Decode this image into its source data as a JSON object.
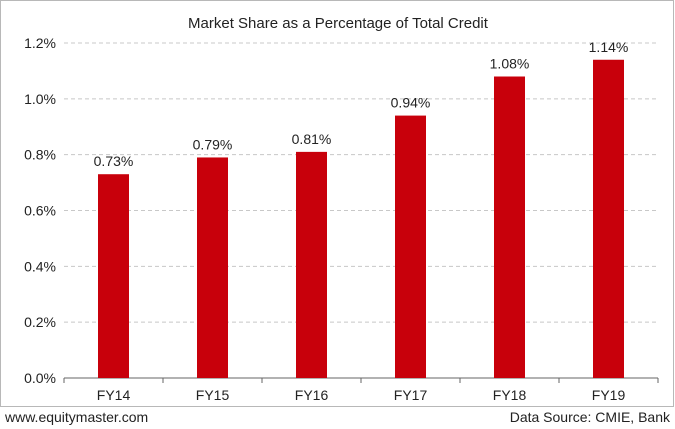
{
  "footer": {
    "left": "www.equitymaster.com",
    "right": "Data Source: CMIE, Bank"
  },
  "colors": {
    "bar": "#c8000b",
    "grid": "#c8c8c8",
    "axis": "#666666"
  },
  "chart_data": {
    "type": "bar",
    "title": "Market Share as a Percentage of Total Credit",
    "xlabel": "",
    "ylabel": "",
    "categories": [
      "FY14",
      "FY15",
      "FY16",
      "FY17",
      "FY18",
      "FY19"
    ],
    "values": [
      0.73,
      0.79,
      0.81,
      0.94,
      1.08,
      1.14
    ],
    "data_labels": [
      "0.73%",
      "0.79%",
      "0.81%",
      "0.94%",
      "1.08%",
      "1.14%"
    ],
    "ylim": [
      0,
      1.2
    ],
    "yticks": [
      0,
      0.2,
      0.4,
      0.6,
      0.8,
      1.0,
      1.2
    ],
    "ytick_labels": [
      "0.0%",
      "0.2%",
      "0.4%",
      "0.6%",
      "0.8%",
      "1.0%",
      "1.2%"
    ],
    "grid": true,
    "grid_style": "dashed",
    "legend": "none"
  }
}
